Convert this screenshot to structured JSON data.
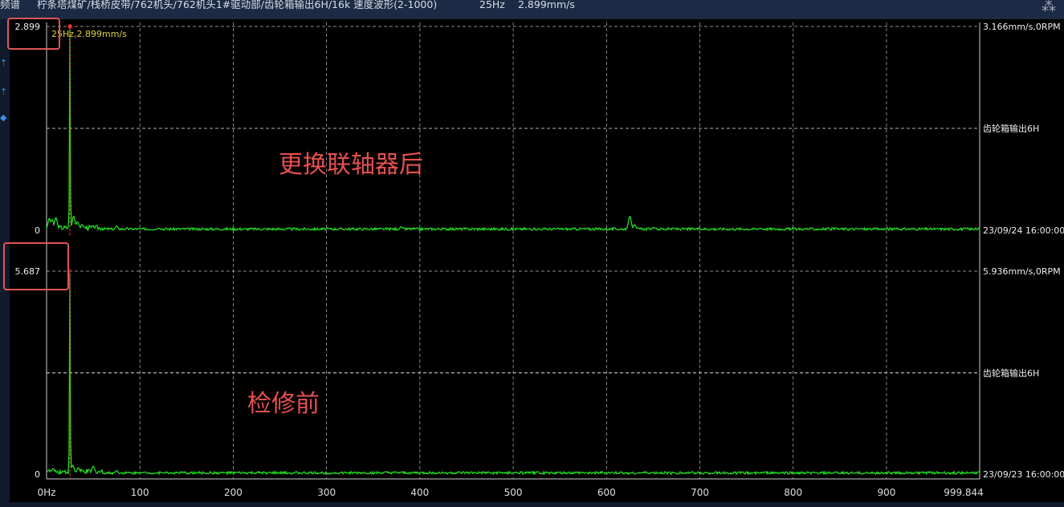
{
  "header": {
    "module": "频谱",
    "path": "柠条塔煤矿/栈桥皮带/762机头/762机头1#驱动部/齿轮箱输出6H/16k 速度波形(2-1000)",
    "cursor_freq": "25Hz",
    "cursor_value": "2.899mm/s",
    "icon": "collapse-icon"
  },
  "toolbar": {
    "icons": [
      "cursor-icon",
      "cursor-icon",
      "diamond-icon"
    ]
  },
  "annotations": {
    "top": "更换联轴器后",
    "bottom": "检修前"
  },
  "colors": {
    "series": "#22dd22",
    "cursor": "#ff3030",
    "grid": "#bbbbbb",
    "annotation": "#e65050",
    "cursor_label": "#d8d040"
  },
  "chart_data": [
    {
      "type": "line",
      "title": "",
      "ylim": [
        0,
        2.899
      ],
      "ymax_label": "2.899",
      "ymin_label": "0",
      "right_labels": [
        "3.166mm/s,0RPM",
        "齿轮箱输出6H",
        "23/09/24 16:00:00"
      ],
      "cursor": {
        "x": 25,
        "label": "25Hz,2.899mm/s"
      },
      "peaks": [
        [
          3,
          0.17
        ],
        [
          6,
          0.15
        ],
        [
          10,
          0.18
        ],
        [
          25,
          2.899
        ],
        [
          29,
          0.2
        ],
        [
          33,
          0.12
        ],
        [
          38,
          0.08
        ],
        [
          50,
          0.05
        ],
        [
          75,
          0.06
        ],
        [
          120,
          0.03
        ],
        [
          380,
          0.05
        ],
        [
          625,
          0.2
        ],
        [
          630,
          0.08
        ],
        [
          650,
          0.04
        ],
        [
          672,
          0.03
        ],
        [
          765,
          0.03
        ]
      ]
    },
    {
      "type": "line",
      "title": "",
      "ylim": [
        0,
        5.687
      ],
      "ymax_label": "5.687",
      "ymin_label": "0",
      "right_labels": [
        "5.936mm/s,0RPM",
        "齿轮箱输出6H",
        "23/09/23 16:00:00"
      ],
      "cursor": {
        "x": 25
      },
      "peaks": [
        [
          2,
          0.1
        ],
        [
          7,
          0.15
        ],
        [
          18,
          0.08
        ],
        [
          25,
          5.687
        ],
        [
          28,
          0.25
        ],
        [
          34,
          0.18
        ],
        [
          50,
          0.22
        ],
        [
          75,
          0.1
        ],
        [
          100,
          0.05
        ],
        [
          125,
          0.04
        ]
      ]
    }
  ],
  "x_axis": {
    "xlim": [
      0,
      999.844
    ],
    "ticks": [
      "0Hz",
      "100",
      "200",
      "300",
      "400",
      "500",
      "600",
      "700",
      "800",
      "900",
      "999.844"
    ]
  }
}
